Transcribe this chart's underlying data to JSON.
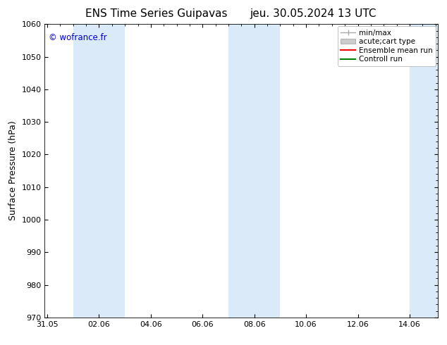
{
  "title_left": "ENS Time Series Guipavas",
  "title_right": "jeu. 30.05.2024 13 UTC",
  "ylabel": "Surface Pressure (hPa)",
  "ylim": [
    970,
    1060
  ],
  "yticks": [
    970,
    980,
    990,
    1000,
    1010,
    1020,
    1030,
    1040,
    1050,
    1060
  ],
  "xtick_labels": [
    "31.05",
    "02.06",
    "04.06",
    "06.06",
    "08.06",
    "10.06",
    "12.06",
    "14.06"
  ],
  "xtick_positions": [
    0,
    2,
    4,
    6,
    8,
    10,
    12,
    14
  ],
  "xlim": [
    -0.1,
    15.1
  ],
  "watermark": "© wofrance.fr",
  "watermark_color": "#0000cc",
  "bg_color": "#ffffff",
  "plot_bg_color": "#ffffff",
  "shaded_regions": [
    {
      "xmin": 1,
      "xmax": 3,
      "color": "#daeaf8"
    },
    {
      "xmin": 7,
      "xmax": 9,
      "color": "#daeaf8"
    },
    {
      "xmin": 14,
      "xmax": 15.1,
      "color": "#daeaf8"
    }
  ],
  "legend_entries": [
    {
      "label": "min/max",
      "color": "#aaaaaa",
      "type": "errorbar"
    },
    {
      "label": "acute;cart type",
      "color": "#cccccc",
      "type": "box"
    },
    {
      "label": "Ensemble mean run",
      "color": "#ff0000",
      "type": "line"
    },
    {
      "label": "Controll run",
      "color": "#008000",
      "type": "line"
    }
  ],
  "title_fontsize": 11,
  "tick_fontsize": 8,
  "ylabel_fontsize": 9,
  "legend_fontsize": 7.5
}
